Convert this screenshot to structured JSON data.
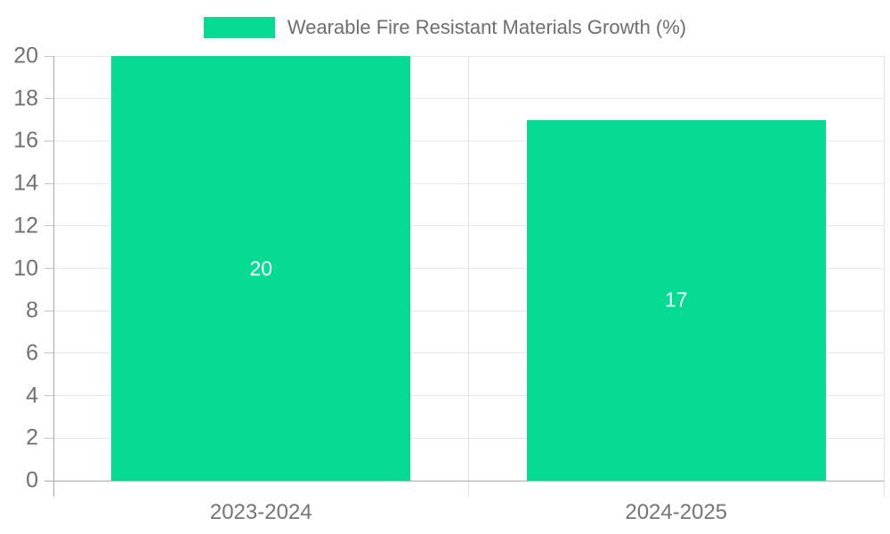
{
  "legend": {
    "label": "Wearable Fire Resistant Materials Growth (%)",
    "swatch_color": "#05db93"
  },
  "chart_data": {
    "type": "bar",
    "title": "Wearable Fire Resistant Materials Growth (%)",
    "categories": [
      "2023-2024",
      "2024-2025"
    ],
    "series": [
      {
        "name": "Wearable Fire Resistant Materials Growth (%)",
        "values": [
          20,
          17
        ]
      }
    ],
    "data_labels": [
      "20",
      "17"
    ],
    "xlabel": "",
    "ylabel": "",
    "ylim": [
      0,
      20
    ],
    "ytick_step": 2,
    "grid": true,
    "legend_position": "top-center",
    "bar_color": "#05db93",
    "bar_label_color": "#ffffff",
    "axis_color": "#a9a9a9",
    "grid_color": "#e9e9e9",
    "tick_label_color": "#717171"
  }
}
